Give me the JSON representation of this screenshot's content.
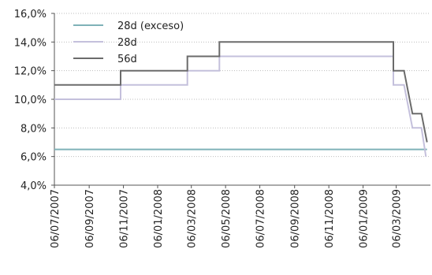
{
  "chart_data": {
    "type": "line",
    "title": "",
    "xlabel": "",
    "ylabel": "",
    "grid": true,
    "legend_position": "top-left",
    "x_range": [
      "2007-07-06",
      "2009-05-06"
    ],
    "y_range": [
      4.0,
      16.0
    ],
    "y_ticks": [
      {
        "value": 4,
        "label": "4,0%"
      },
      {
        "value": 6,
        "label": "6,0%"
      },
      {
        "value": 8,
        "label": "8,0%"
      },
      {
        "value": 10,
        "label": "10,0%"
      },
      {
        "value": 12,
        "label": "12,0%"
      },
      {
        "value": 14,
        "label": "14,0%"
      },
      {
        "value": 16,
        "label": "16,0%"
      }
    ],
    "x_ticks": [
      {
        "date": "2007-07-06",
        "label": "06/07/2007"
      },
      {
        "date": "2007-09-06",
        "label": "06/09/2007"
      },
      {
        "date": "2007-11-06",
        "label": "06/11/2007"
      },
      {
        "date": "2008-01-06",
        "label": "06/01/2008"
      },
      {
        "date": "2008-03-06",
        "label": "06/03/2008"
      },
      {
        "date": "2008-05-06",
        "label": "06/05/2008"
      },
      {
        "date": "2008-07-06",
        "label": "06/07/2008"
      },
      {
        "date": "2008-09-06",
        "label": "06/09/2008"
      },
      {
        "date": "2008-11-06",
        "label": "06/11/2008"
      },
      {
        "date": "2009-01-06",
        "label": "06/01/2009"
      },
      {
        "date": "2009-03-06",
        "label": "06/03/2009"
      }
    ],
    "series": [
      {
        "name": "28d (exceso)",
        "color": "#7fb2b8",
        "points": [
          {
            "x": "2007-07-06",
            "y": 6.5
          },
          {
            "x": "2009-04-30",
            "y": 6.5
          }
        ]
      },
      {
        "name": "28d",
        "color": "#c4c0dc",
        "points": [
          {
            "x": "2007-07-06",
            "y": 10.0
          },
          {
            "x": "2007-11-01",
            "y": 10.0
          },
          {
            "x": "2007-11-01",
            "y": 11.0
          },
          {
            "x": "2008-02-28",
            "y": 11.0
          },
          {
            "x": "2008-02-28",
            "y": 12.0
          },
          {
            "x": "2008-04-25",
            "y": 12.0
          },
          {
            "x": "2008-04-25",
            "y": 13.0
          },
          {
            "x": "2009-03-01",
            "y": 13.0
          },
          {
            "x": "2009-03-01",
            "y": 11.0
          },
          {
            "x": "2009-03-20",
            "y": 11.0
          },
          {
            "x": "2009-04-04",
            "y": 8.0
          },
          {
            "x": "2009-04-20",
            "y": 8.0
          },
          {
            "x": "2009-04-28",
            "y": 6.0
          }
        ]
      },
      {
        "name": "56d",
        "color": "#6b6b6b",
        "points": [
          {
            "x": "2007-07-06",
            "y": 11.0
          },
          {
            "x": "2007-11-01",
            "y": 11.0
          },
          {
            "x": "2007-11-01",
            "y": 12.0
          },
          {
            "x": "2008-02-28",
            "y": 12.0
          },
          {
            "x": "2008-02-28",
            "y": 13.0
          },
          {
            "x": "2008-04-25",
            "y": 13.0
          },
          {
            "x": "2008-04-25",
            "y": 14.0
          },
          {
            "x": "2009-03-01",
            "y": 14.0
          },
          {
            "x": "2009-03-01",
            "y": 12.0
          },
          {
            "x": "2009-03-20",
            "y": 12.0
          },
          {
            "x": "2009-04-04",
            "y": 9.0
          },
          {
            "x": "2009-04-20",
            "y": 9.0
          },
          {
            "x": "2009-04-30",
            "y": 7.0
          }
        ]
      }
    ]
  }
}
